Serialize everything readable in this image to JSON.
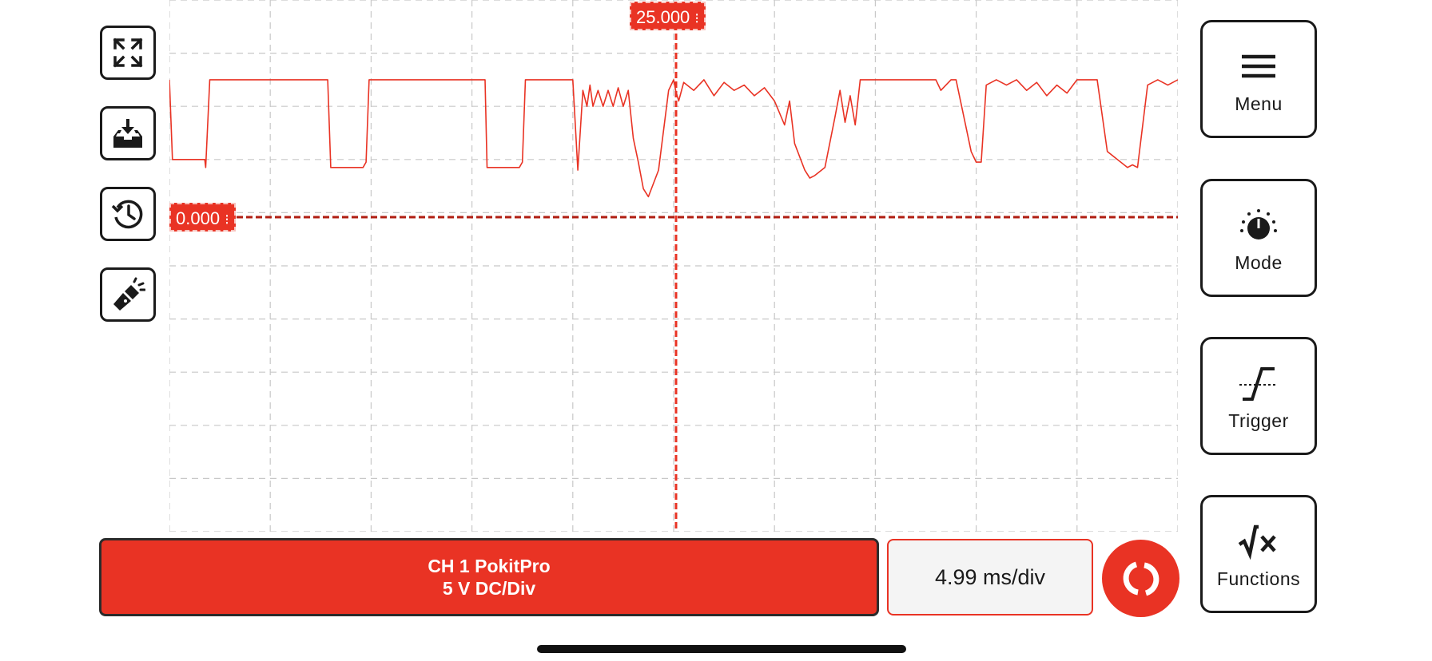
{
  "left_toolbar": [
    {
      "name": "fullscreen",
      "icon": "expand-arrows-icon"
    },
    {
      "name": "download",
      "icon": "inbox-download-icon"
    },
    {
      "name": "history",
      "icon": "history-clock-icon"
    },
    {
      "name": "flashlight",
      "icon": "flashlight-icon"
    }
  ],
  "scope": {
    "trigger_time_marker": "25.000",
    "trigger_level_marker": "0.000",
    "accent_color": "#e93324",
    "grid": true,
    "grid_divisions_x": 10,
    "grid_divisions_y": 10
  },
  "chart_data": {
    "type": "line",
    "title": "",
    "xlabel": "",
    "ylabel": "",
    "xlim": [
      0,
      10
    ],
    "ylim": [
      -6,
      4
    ],
    "grid": true,
    "series": [
      {
        "color": "#e93324",
        "x": [
          0,
          0.03,
          0.35,
          0.36,
          0.4,
          1.57,
          1.6,
          1.92,
          1.95,
          1.98,
          3.13,
          3.15,
          3.47,
          3.5,
          3.53,
          4.0,
          4.05,
          4.1,
          4.14,
          4.17,
          4.2,
          4.25,
          4.3,
          4.35,
          4.4,
          4.45,
          4.5,
          4.55,
          4.6,
          4.65,
          4.7,
          4.75,
          4.85,
          4.95,
          5.0,
          5.02,
          5.05,
          5.1,
          5.2,
          5.3,
          5.4,
          5.5,
          5.6,
          5.7,
          5.8,
          5.9,
          6.0,
          6.1,
          6.15,
          6.2,
          6.3,
          6.35,
          6.4,
          6.5,
          6.6,
          6.65,
          6.7,
          6.75,
          6.8,
          6.85,
          6.9,
          7.0,
          7.6,
          7.65,
          7.75,
          7.8,
          7.95,
          8.0,
          8.05,
          8.1,
          8.2,
          8.3,
          8.4,
          8.5,
          8.6,
          8.7,
          8.8,
          8.9,
          9.0,
          9.2,
          9.3,
          9.5,
          9.55,
          9.6,
          9.7,
          9.8,
          9.9,
          10.0
        ],
        "y": [
          2.5,
          1.0,
          1.0,
          0.85,
          2.5,
          2.5,
          0.85,
          0.85,
          0.95,
          2.5,
          2.5,
          0.85,
          0.85,
          0.95,
          2.5,
          2.5,
          0.8,
          2.3,
          2.0,
          2.4,
          2.0,
          2.3,
          2.0,
          2.3,
          2.0,
          2.35,
          2.0,
          2.3,
          1.4,
          0.95,
          0.45,
          0.3,
          0.8,
          2.3,
          2.5,
          2.3,
          2.1,
          2.45,
          2.3,
          2.5,
          2.2,
          2.45,
          2.3,
          2.4,
          2.2,
          2.35,
          2.1,
          1.65,
          2.1,
          1.3,
          0.8,
          0.65,
          0.7,
          0.85,
          1.8,
          2.3,
          1.7,
          2.2,
          1.65,
          2.5,
          2.5,
          2.5,
          2.5,
          2.3,
          2.5,
          2.5,
          1.15,
          0.95,
          0.95,
          2.4,
          2.5,
          2.4,
          2.5,
          2.3,
          2.45,
          2.2,
          2.4,
          2.25,
          2.5,
          2.5,
          1.15,
          0.85,
          0.9,
          0.85,
          2.4,
          2.5,
          2.4,
          2.5
        ]
      }
    ]
  },
  "right_panel": [
    {
      "label": "Menu",
      "icon": "hamburger-menu-icon"
    },
    {
      "label": "Mode",
      "icon": "mode-dial-icon"
    },
    {
      "label": "Trigger",
      "icon": "trigger-edge-icon"
    },
    {
      "label": "Functions",
      "icon": "sqrt-x-icon"
    }
  ],
  "channel": {
    "line1": "CH 1 PokitPro",
    "line2": "5 V DC/Div",
    "color": "#e93324"
  },
  "timebase": "4.99 ms/div",
  "run_button": {
    "icon": "run-stop-icon",
    "color": "#e93324"
  }
}
